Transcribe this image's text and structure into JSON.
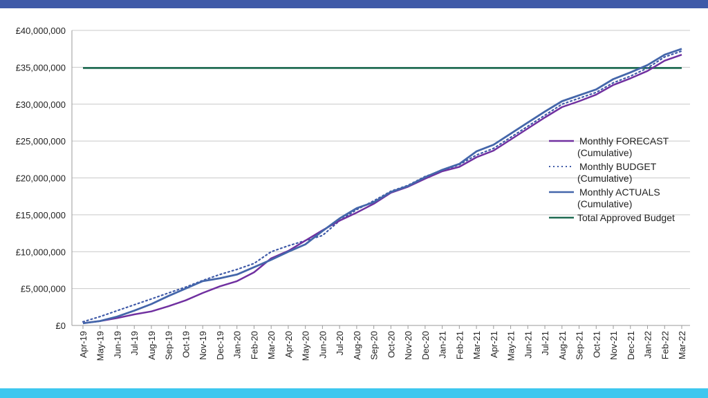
{
  "colors": {
    "top_bar": "#3f5aa8",
    "bottom_bar": "#3ec7ef",
    "forecast": "#7030a0",
    "budget": "#3f5aa8",
    "actuals": "#4466aa",
    "approved": "#1f6b52"
  },
  "chart_data": {
    "type": "line",
    "title": "",
    "xlabel": "",
    "ylabel": "",
    "ylim": [
      0,
      40000000
    ],
    "y_ticks": [
      0,
      5000000,
      10000000,
      15000000,
      20000000,
      25000000,
      30000000,
      35000000,
      40000000
    ],
    "y_tick_labels": [
      "£0",
      "£5,000,000",
      "£10,000,000",
      "£15,000,000",
      "£20,000,000",
      "£25,000,000",
      "£30,000,000",
      "£35,000,000",
      "£40,000,000"
    ],
    "grid": true,
    "legend_position": "right",
    "categories": [
      "Apr-19",
      "May-19",
      "Jun-19",
      "Jul-19",
      "Aug-19",
      "Sep-19",
      "Oct-19",
      "Nov-19",
      "Dec-19",
      "Jan-20",
      "Feb-20",
      "Mar-20",
      "Apr-20",
      "May-20",
      "Jun-20",
      "Jul-20",
      "Aug-20",
      "Sep-20",
      "Oct-20",
      "Nov-20",
      "Dec-20",
      "Jan-21",
      "Feb-21",
      "Mar-21",
      "Apr-21",
      "May-21",
      "Jun-21",
      "Jul-21",
      "Aug-21",
      "Sep-21",
      "Oct-21",
      "Nov-21",
      "Dec-21",
      "Jan-22",
      "Feb-22",
      "Mar-22"
    ],
    "series": [
      {
        "name": "Monthly FORECAST",
        "name_line2": "(Cumulative)",
        "style": "solid",
        "values": [
          300000,
          600000,
          1000000,
          1500000,
          1900000,
          2600000,
          3400000,
          4400000,
          5300000,
          6000000,
          7200000,
          9100000,
          10100000,
          11500000,
          12900000,
          14200000,
          15300000,
          16500000,
          18000000,
          18800000,
          19900000,
          20900000,
          21500000,
          22800000,
          23700000,
          25200000,
          26700000,
          28200000,
          29600000,
          30400000,
          31300000,
          32600000,
          33500000,
          34500000,
          35900000,
          36700000
        ]
      },
      {
        "name": "Monthly BUDGET",
        "name_line2": "(Cumulative)",
        "style": "dotted",
        "values": [
          500000,
          1200000,
          2000000,
          2800000,
          3600000,
          4400000,
          5200000,
          6100000,
          6900000,
          7600000,
          8400000,
          10000000,
          10800000,
          11500000,
          12200000,
          14200000,
          15700000,
          16900000,
          18200000,
          19000000,
          20200000,
          21000000,
          21800000,
          23100000,
          24000000,
          25500000,
          27000000,
          28500000,
          30000000,
          30800000,
          31600000,
          32900000,
          33800000,
          34900000,
          36400000,
          37200000
        ]
      },
      {
        "name": "Monthly ACTUALS",
        "name_line2": "(Cumulative)",
        "style": "solid",
        "values": [
          300000,
          600000,
          1200000,
          2000000,
          2900000,
          4000000,
          5000000,
          6000000,
          6400000,
          6900000,
          7900000,
          8900000,
          10000000,
          11000000,
          12800000,
          14500000,
          15900000,
          16700000,
          18100000,
          18900000,
          20100000,
          21100000,
          21900000,
          23600000,
          24500000,
          26000000,
          27500000,
          29000000,
          30400000,
          31200000,
          32000000,
          33400000,
          34300000,
          35300000,
          36700000,
          37500000
        ]
      },
      {
        "name": "Total Approved Budget",
        "name_line2": "",
        "style": "solid",
        "values": [
          34900000,
          34900000,
          34900000,
          34900000,
          34900000,
          34900000,
          34900000,
          34900000,
          34900000,
          34900000,
          34900000,
          34900000,
          34900000,
          34900000,
          34900000,
          34900000,
          34900000,
          34900000,
          34900000,
          34900000,
          34900000,
          34900000,
          34900000,
          34900000,
          34900000,
          34900000,
          34900000,
          34900000,
          34900000,
          34900000,
          34900000,
          34900000,
          34900000,
          34900000,
          34900000,
          34900000
        ]
      }
    ]
  }
}
